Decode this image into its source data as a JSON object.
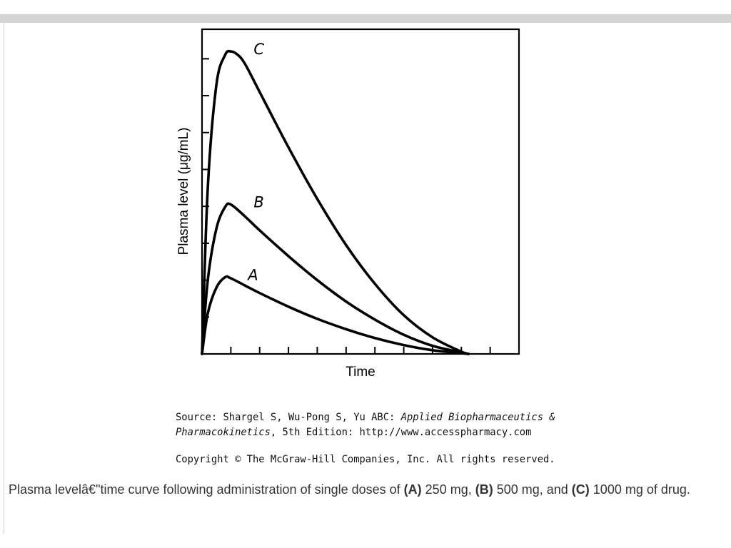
{
  "chart_data": {
    "type": "line",
    "xlabel": "Time",
    "ylabel": "Plasma level (μg/mL)",
    "xlim": [
      0,
      11
    ],
    "ylim": [
      0,
      8.8
    ],
    "grid": false,
    "series": [
      {
        "name": "A",
        "x": [
          0,
          0.2,
          0.5,
          0.8,
          1,
          1.5,
          2,
          3,
          4,
          5,
          6,
          7,
          8,
          9,
          9.25
        ],
        "values": [
          0,
          1.1,
          1.8,
          2.08,
          2.05,
          1.85,
          1.65,
          1.28,
          0.95,
          0.67,
          0.43,
          0.24,
          0.1,
          0.02,
          0
        ]
      },
      {
        "name": "B",
        "x": [
          0,
          0.2,
          0.5,
          0.8,
          1,
          1.5,
          2,
          3,
          4,
          5,
          6,
          7,
          8,
          9,
          9.25
        ],
        "values": [
          0,
          2.0,
          3.4,
          3.98,
          4.05,
          3.72,
          3.35,
          2.65,
          2.0,
          1.42,
          0.93,
          0.52,
          0.22,
          0.04,
          0
        ]
      },
      {
        "name": "C",
        "x": [
          0,
          0.2,
          0.5,
          0.8,
          1,
          1.25,
          1.5,
          2,
          3,
          4,
          5,
          6,
          7,
          8,
          9,
          9.25
        ],
        "values": [
          0,
          4.5,
          7.3,
          8.1,
          8.2,
          8.1,
          7.85,
          7.1,
          5.6,
          4.2,
          2.95,
          1.9,
          1.05,
          0.45,
          0.06,
          0
        ]
      }
    ]
  },
  "source": {
    "prefix": "Source: Shargel S, Wu-Pong S, Yu ABC: ",
    "book_title_1": "Applied Biopharmaceutics &",
    "book_title_2": "Pharmacokinetics",
    "suffix": ", 5th Edition: http://www.accesspharmacy.com"
  },
  "copyright": "Copyright © The McGraw-Hill Companies, Inc. All rights reserved.",
  "caption": {
    "text_1": "Plasma levelâ€\"time curve following administration of single doses of ",
    "a_tag": "(A)",
    "text_2": " 250 mg, ",
    "b_tag": "(B)",
    "text_3": " 500 mg, and ",
    "c_tag": "(C)",
    "text_4": " 1000 mg of drug."
  }
}
